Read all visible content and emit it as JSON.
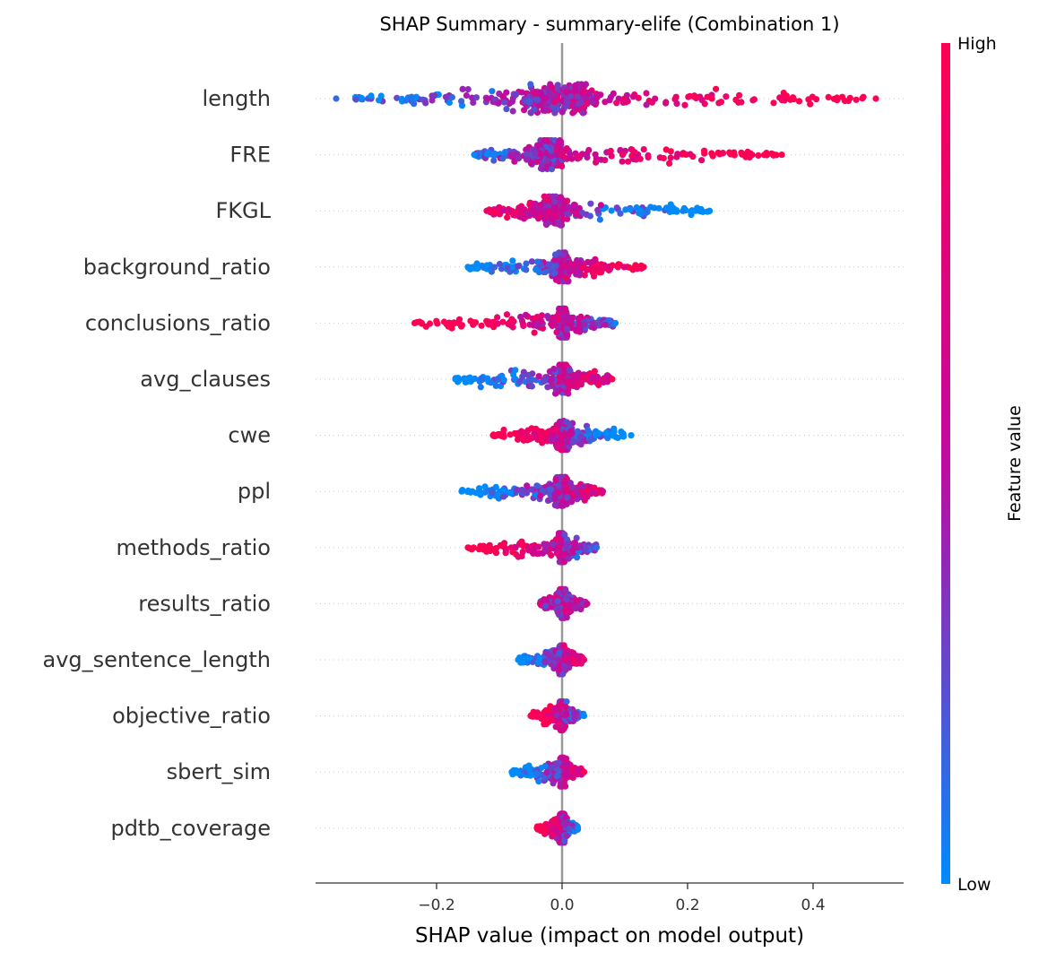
{
  "chart_data": {
    "type": "scatter",
    "subtype": "shap-beeswarm",
    "title": "SHAP Summary - summary-elife (Combination 1)",
    "xlabel": "SHAP value (impact on model output)",
    "xlim": [
      -0.39,
      0.545
    ],
    "x_ticks": [
      {
        "value": -0.2,
        "label": "−0.2"
      },
      {
        "value": 0.0,
        "label": "0.0"
      },
      {
        "value": 0.2,
        "label": "0.2"
      },
      {
        "value": 0.4,
        "label": "0.4"
      }
    ],
    "colorbar": {
      "label": "Feature value",
      "high": "High",
      "low": "Low",
      "high_color": "#ff0052",
      "mid_color": "#c00aa0",
      "low_color": "#008bfb"
    },
    "features": [
      {
        "name": "length",
        "min": -0.36,
        "max": 0.5,
        "core_lo": -0.05,
        "core_hi": 0.04,
        "mode": "low_left"
      },
      {
        "name": "FRE",
        "min": -0.14,
        "max": 0.35,
        "core_lo": -0.035,
        "core_hi": 0.0,
        "mode": "low_left"
      },
      {
        "name": "FKGL",
        "min": -0.12,
        "max": 0.235,
        "core_lo": -0.03,
        "core_hi": 0.0,
        "mode": "high_left"
      },
      {
        "name": "background_ratio",
        "min": -0.15,
        "max": 0.13,
        "core_lo": -0.01,
        "core_hi": 0.01,
        "mode": "low_left"
      },
      {
        "name": "conclusions_ratio",
        "min": -0.235,
        "max": 0.085,
        "core_lo": -0.005,
        "core_hi": 0.008,
        "mode": "high_left"
      },
      {
        "name": "avg_clauses",
        "min": -0.17,
        "max": 0.08,
        "core_lo": -0.005,
        "core_hi": 0.01,
        "mode": "low_left"
      },
      {
        "name": "cwe",
        "min": -0.11,
        "max": 0.11,
        "core_lo": -0.01,
        "core_hi": 0.01,
        "mode": "high_left"
      },
      {
        "name": "ppl",
        "min": -0.16,
        "max": 0.065,
        "core_lo": -0.01,
        "core_hi": 0.008,
        "mode": "low_left"
      },
      {
        "name": "methods_ratio",
        "min": -0.15,
        "max": 0.055,
        "core_lo": -0.004,
        "core_hi": 0.004,
        "mode": "high_left"
      },
      {
        "name": "results_ratio",
        "min": -0.035,
        "max": 0.04,
        "core_lo": -0.004,
        "core_hi": 0.006,
        "mode": "mixed"
      },
      {
        "name": "avg_sentence_length",
        "min": -0.07,
        "max": 0.035,
        "core_lo": -0.005,
        "core_hi": 0.004,
        "mode": "low_left"
      },
      {
        "name": "objective_ratio",
        "min": -0.05,
        "max": 0.035,
        "core_lo": -0.004,
        "core_hi": 0.004,
        "mode": "high_left"
      },
      {
        "name": "sbert_sim",
        "min": -0.08,
        "max": 0.035,
        "core_lo": -0.003,
        "core_hi": 0.004,
        "mode": "low_left"
      },
      {
        "name": "pdtb_coverage",
        "min": -0.04,
        "max": 0.025,
        "core_lo": -0.005,
        "core_hi": 0.004,
        "mode": "high_left"
      }
    ]
  }
}
